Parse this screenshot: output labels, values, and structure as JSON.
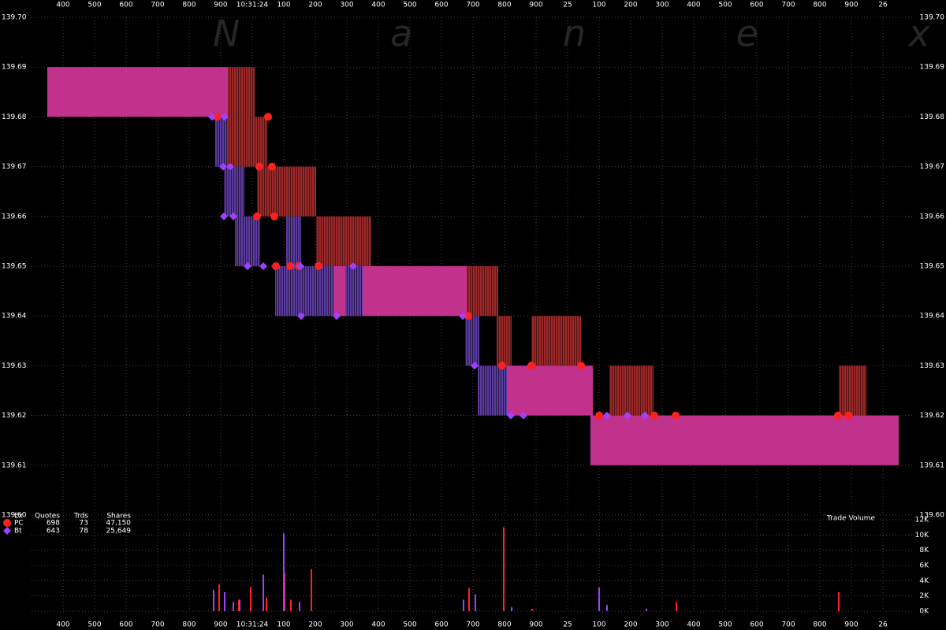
{
  "chart_data": {
    "type": "quote-boxes",
    "watermark": "N a n e x",
    "xlim": [
      23.3,
      26.1
    ],
    "xticks": [
      {
        "value": 23.4,
        "label": "400"
      },
      {
        "value": 23.5,
        "label": "500"
      },
      {
        "value": 23.6,
        "label": "600"
      },
      {
        "value": 23.7,
        "label": "700"
      },
      {
        "value": 23.8,
        "label": "800"
      },
      {
        "value": 23.9,
        "label": "900"
      },
      {
        "value": 24.0,
        "label": "10:31:24"
      },
      {
        "value": 24.1,
        "label": "100"
      },
      {
        "value": 24.2,
        "label": "200"
      },
      {
        "value": 24.3,
        "label": "300"
      },
      {
        "value": 24.4,
        "label": "400"
      },
      {
        "value": 24.5,
        "label": "500"
      },
      {
        "value": 24.6,
        "label": "600"
      },
      {
        "value": 24.7,
        "label": "700"
      },
      {
        "value": 24.8,
        "label": "800"
      },
      {
        "value": 24.9,
        "label": "900"
      },
      {
        "value": 25.0,
        "label": "25"
      },
      {
        "value": 25.1,
        "label": "100"
      },
      {
        "value": 25.2,
        "label": "200"
      },
      {
        "value": 25.3,
        "label": "300"
      },
      {
        "value": 25.4,
        "label": "400"
      },
      {
        "value": 25.5,
        "label": "500"
      },
      {
        "value": 25.6,
        "label": "600"
      },
      {
        "value": 25.7,
        "label": "700"
      },
      {
        "value": 25.8,
        "label": "800"
      },
      {
        "value": 25.9,
        "label": "900"
      },
      {
        "value": 26.0,
        "label": "26"
      }
    ],
    "ylim": [
      139.6,
      139.7
    ],
    "yticks": [
      {
        "value": 139.6,
        "label": "139.60"
      },
      {
        "value": 139.61,
        "label": "139.61"
      },
      {
        "value": 139.62,
        "label": "139.62"
      },
      {
        "value": 139.63,
        "label": "139.63"
      },
      {
        "value": 139.64,
        "label": "139.64"
      },
      {
        "value": 139.65,
        "label": "139.65"
      },
      {
        "value": 139.66,
        "label": "139.66"
      },
      {
        "value": 139.67,
        "label": "139.67"
      },
      {
        "value": 139.68,
        "label": "139.68"
      },
      {
        "value": 139.69,
        "label": "139.69"
      },
      {
        "value": 139.7,
        "label": "139.70"
      }
    ],
    "grid": true,
    "spread": {
      "color": "#c0328c",
      "boxes": [
        {
          "x0": 23.35,
          "x1": 23.9225,
          "low": 139.68,
          "high": 139.69
        },
        {
          "x0": 24.2575,
          "x1": 24.68,
          "low": 139.64,
          "high": 139.65
        },
        {
          "x0": 24.8075,
          "x1": 25.08,
          "low": 139.62,
          "high": 139.63
        },
        {
          "x0": 25.0725,
          "x1": 26.05,
          "low": 139.61,
          "high": 139.62
        }
      ]
    },
    "legend_header": [
      "Ex",
      "Quotes",
      "Trds",
      "Shares"
    ],
    "series": [
      {
        "name": "PC",
        "color": "#ff2020",
        "marker": "circle",
        "quotes": 698,
        "trades": 73,
        "shares": {
          "value": 47150,
          "label": "47,150"
        },
        "boxes": [
          {
            "x0": 23.9225,
            "x1": 24.0075,
            "low": 139.68,
            "high": 139.69
          },
          {
            "x0": 23.9225,
            "x1": 24.0475,
            "low": 139.67,
            "high": 139.68
          },
          {
            "x0": 24.015,
            "x1": 24.2025,
            "low": 139.66,
            "high": 139.67
          },
          {
            "x0": 24.2025,
            "x1": 24.3775,
            "low": 139.65,
            "high": 139.66
          },
          {
            "x0": 24.68,
            "x1": 24.78,
            "low": 139.64,
            "high": 139.65
          },
          {
            "x0": 24.775,
            "x1": 24.8225,
            "low": 139.63,
            "high": 139.64
          },
          {
            "x0": 24.885,
            "x1": 25.0425,
            "low": 139.63,
            "high": 139.64
          },
          {
            "x0": 25.1325,
            "x1": 25.2725,
            "low": 139.62,
            "high": 139.63
          },
          {
            "x0": 25.86,
            "x1": 25.9475,
            "low": 139.62,
            "high": 139.63
          }
        ],
        "points": {
          "x": [
            23.8875,
            24.05,
            24.0225,
            24.0625,
            24.015,
            24.07,
            24.075,
            24.12,
            24.1475,
            24.21,
            24.685,
            24.7925,
            24.885,
            25.0425,
            25.1,
            25.275,
            25.3425,
            25.8575,
            25.89
          ],
          "y": [
            139.68,
            139.68,
            139.67,
            139.67,
            139.66,
            139.66,
            139.65,
            139.65,
            139.65,
            139.65,
            139.64,
            139.63,
            139.63,
            139.63,
            139.62,
            139.62,
            139.62,
            139.62,
            139.62
          ]
        },
        "volume": {
          "x": [
            23.895,
            23.9575,
            23.995,
            24.045,
            24.1025,
            24.1225,
            24.1875,
            24.6875,
            24.7975,
            24.8875,
            25.1,
            25.345,
            25.86
          ],
          "values": [
            3500,
            1500,
            3200,
            1800,
            5000,
            1500,
            5500,
            3000,
            11000,
            300,
            800,
            1200,
            2500
          ]
        }
      },
      {
        "name": "Bt",
        "color": "#a040ff",
        "marker": "diamond",
        "quotes": 643,
        "trades": 78,
        "shares": {
          "value": 25649,
          "label": "25,649"
        },
        "boxes": [
          {
            "x0": 23.8825,
            "x1": 23.9225,
            "low": 139.67,
            "high": 139.68
          },
          {
            "x0": 23.91,
            "x1": 23.975,
            "low": 139.66,
            "high": 139.67
          },
          {
            "x0": 23.945,
            "x1": 24.025,
            "low": 139.65,
            "high": 139.66
          },
          {
            "x0": 24.1075,
            "x1": 24.155,
            "low": 139.65,
            "high": 139.66
          },
          {
            "x0": 24.0725,
            "x1": 24.2575,
            "low": 139.64,
            "high": 139.65
          },
          {
            "x0": 24.295,
            "x1": 24.35,
            "low": 139.64,
            "high": 139.65
          },
          {
            "x0": 24.675,
            "x1": 24.72,
            "low": 139.63,
            "high": 139.64
          },
          {
            "x0": 24.715,
            "x1": 24.8075,
            "low": 139.62,
            "high": 139.63
          }
        ],
        "points": {
          "x": [
            23.8725,
            23.9125,
            23.9075,
            23.93,
            23.91,
            23.94,
            23.985,
            24.035,
            24.1525,
            24.32,
            24.155,
            24.2675,
            24.6675,
            24.705,
            24.82,
            24.86,
            25.125,
            25.19,
            25.245
          ],
          "y": [
            139.68,
            139.68,
            139.67,
            139.67,
            139.66,
            139.66,
            139.65,
            139.65,
            139.65,
            139.65,
            139.64,
            139.64,
            139.64,
            139.63,
            139.62,
            139.62,
            139.62,
            139.62,
            139.62
          ]
        },
        "volume": {
          "x": [
            23.8775,
            23.9125,
            23.94,
            23.96,
            24.035,
            24.1,
            24.15,
            24.67,
            24.7075,
            24.8225,
            25.1,
            25.125,
            25.25
          ],
          "values": [
            2800,
            2500,
            1200,
            1500,
            4800,
            10200,
            1200,
            1500,
            2200,
            500,
            3100,
            800,
            300
          ]
        }
      }
    ],
    "volume_panel": {
      "label": "Trade Volume",
      "ylim": [
        0,
        12000
      ],
      "yticks": [
        {
          "value": 0,
          "label": "0K"
        },
        {
          "value": 2000,
          "label": "2K"
        },
        {
          "value": 4000,
          "label": "4K"
        },
        {
          "value": 6000,
          "label": "6K"
        },
        {
          "value": 8000,
          "label": "8K"
        },
        {
          "value": 10000,
          "label": "10K"
        },
        {
          "value": 12000,
          "label": "12K"
        }
      ]
    }
  }
}
